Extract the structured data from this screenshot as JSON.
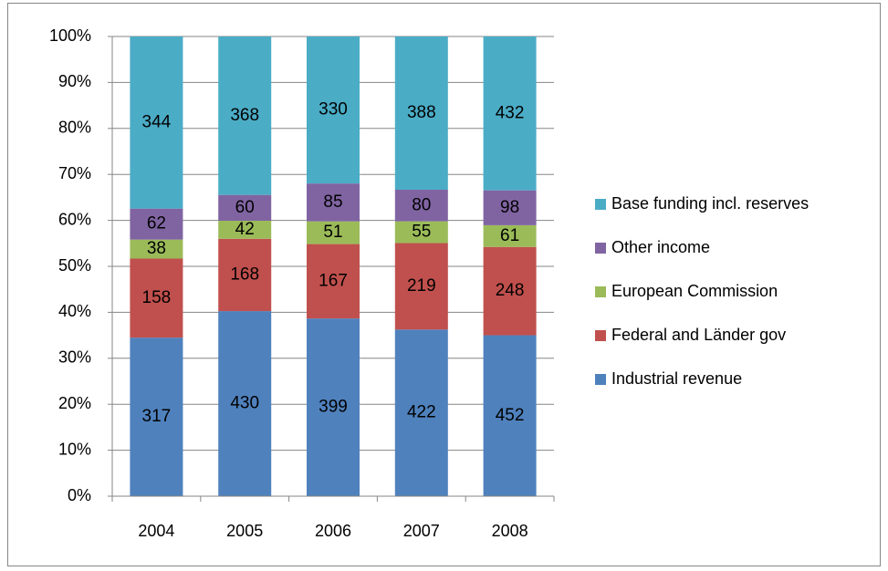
{
  "chart_data": {
    "type": "bar",
    "stacking": "percent",
    "categories": [
      "2004",
      "2005",
      "2006",
      "2007",
      "2008"
    ],
    "series": [
      {
        "name": "Industrial revenue",
        "color": "#4f81bd",
        "values": [
          317,
          430,
          399,
          422,
          452
        ]
      },
      {
        "name": "Federal and Länder gov",
        "color": "#c0504d",
        "values": [
          158,
          168,
          167,
          219,
          248
        ]
      },
      {
        "name": "European Commission",
        "color": "#9bbb59",
        "values": [
          38,
          42,
          51,
          55,
          61
        ]
      },
      {
        "name": "Other income",
        "color": "#8064a2",
        "values": [
          62,
          60,
          85,
          80,
          98
        ]
      },
      {
        "name": "Base funding incl. reserves",
        "color": "#4bacc6",
        "values": [
          344,
          368,
          330,
          388,
          432
        ]
      }
    ],
    "ylim": [
      0,
      100
    ],
    "yticks": [
      {
        "value": 0,
        "label": "0%"
      },
      {
        "value": 10,
        "label": "10%"
      },
      {
        "value": 20,
        "label": "20%"
      },
      {
        "value": 30,
        "label": "30%"
      },
      {
        "value": 40,
        "label": "40%"
      },
      {
        "value": 50,
        "label": "50%"
      },
      {
        "value": 60,
        "label": "60%"
      },
      {
        "value": 70,
        "label": "70%"
      },
      {
        "value": 80,
        "label": "80%"
      },
      {
        "value": 90,
        "label": "90%"
      },
      {
        "value": 100,
        "label": "100%"
      }
    ],
    "grid": true,
    "legend": "right"
  }
}
